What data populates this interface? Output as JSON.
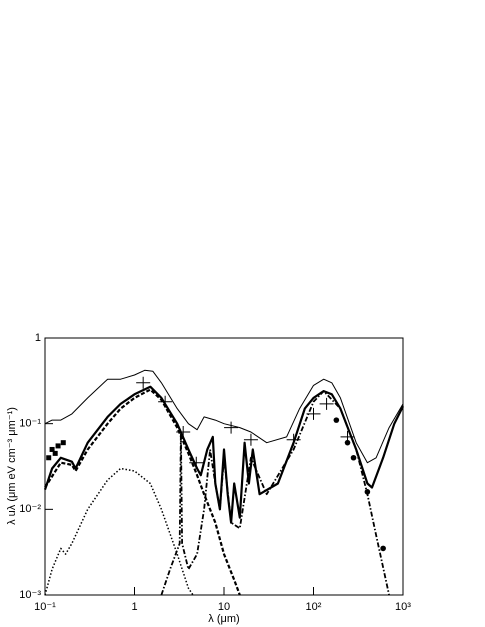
{
  "chart_data": {
    "type": "line",
    "x_label": "λ (μm)",
    "y_label": "λ uλ (μm eV cm⁻³ μm⁻¹)",
    "x_log": true,
    "y_log": true,
    "xlim": [
      0.1,
      1000
    ],
    "ylim": [
      0.001,
      1
    ],
    "xticks": [
      {
        "value": 0.1,
        "label": "10⁻¹"
      },
      1,
      10,
      {
        "value": 100,
        "label": "10²"
      },
      {
        "value": 1000,
        "label": "10³"
      }
    ],
    "yticks": [
      {
        "value": 0.001,
        "label": "10⁻³"
      },
      {
        "value": 0.01,
        "label": "10⁻²"
      },
      {
        "value": 0.1,
        "label": "10⁻¹"
      },
      1
    ],
    "series": [
      {
        "style": "solid",
        "width": 1,
        "color": "#000000",
        "x": [
          0.1,
          0.12,
          0.15,
          0.2,
          0.3,
          0.5,
          0.7,
          1,
          1.3,
          1.6,
          2,
          3,
          4,
          5,
          6,
          8,
          10,
          15,
          20,
          30,
          50,
          70,
          100,
          130,
          160,
          200,
          300,
          400,
          500,
          700,
          1000
        ],
        "values": [
          0.1,
          0.11,
          0.11,
          0.13,
          0.2,
          0.33,
          0.33,
          0.37,
          0.42,
          0.41,
          0.3,
          0.15,
          0.1,
          0.085,
          0.12,
          0.11,
          0.1,
          0.09,
          0.08,
          0.06,
          0.07,
          0.15,
          0.28,
          0.33,
          0.3,
          0.2,
          0.06,
          0.035,
          0.04,
          0.09,
          0.17
        ]
      },
      {
        "style": "solid",
        "width": 2.2,
        "color": "#000000",
        "x": [
          0.1,
          0.12,
          0.15,
          0.2,
          0.22,
          0.3,
          0.5,
          0.7,
          1,
          1.5,
          2,
          3,
          4,
          5,
          5.5,
          6.5,
          7.5,
          8,
          9,
          10,
          11,
          12,
          13,
          15,
          17,
          19,
          21,
          25,
          40,
          60,
          80,
          100,
          130,
          160,
          200,
          300,
          400,
          450,
          600,
          800,
          1000
        ],
        "values": [
          0.017,
          0.03,
          0.04,
          0.036,
          0.03,
          0.06,
          0.12,
          0.17,
          0.22,
          0.27,
          0.2,
          0.1,
          0.05,
          0.03,
          0.025,
          0.05,
          0.07,
          0.02,
          0.01,
          0.05,
          0.015,
          0.007,
          0.02,
          0.008,
          0.06,
          0.02,
          0.05,
          0.015,
          0.02,
          0.06,
          0.15,
          0.2,
          0.24,
          0.22,
          0.15,
          0.05,
          0.02,
          0.018,
          0.04,
          0.1,
          0.16
        ]
      },
      {
        "style": "dashed",
        "width": 2.2,
        "color": "#000000",
        "x": [
          0.1,
          0.15,
          0.2,
          0.22,
          0.3,
          0.5,
          0.7,
          1,
          1.5,
          2,
          3,
          4,
          5,
          6,
          8,
          10,
          13,
          15
        ],
        "values": [
          0.018,
          0.035,
          0.033,
          0.028,
          0.05,
          0.1,
          0.15,
          0.2,
          0.25,
          0.19,
          0.09,
          0.045,
          0.025,
          0.015,
          0.007,
          0.003,
          0.0015,
          0.001
        ]
      },
      {
        "style": "dotted",
        "width": 1.5,
        "color": "#000000",
        "x": [
          0.1,
          0.12,
          0.15,
          0.17,
          0.2,
          0.3,
          0.5,
          0.7,
          1,
          1.5,
          2,
          3,
          4,
          4.5
        ],
        "values": [
          0.001,
          0.002,
          0.0035,
          0.003,
          0.004,
          0.01,
          0.022,
          0.03,
          0.028,
          0.02,
          0.01,
          0.003,
          0.0012,
          0.001
        ]
      },
      {
        "style": "dashdot",
        "width": 1.8,
        "color": "#000000",
        "x": [
          2,
          2.5,
          3.2,
          3.3,
          3.4,
          4,
          5,
          6,
          7,
          8,
          9,
          10,
          12,
          15,
          20,
          30,
          60,
          100,
          130,
          200,
          300,
          400,
          500,
          700
        ],
        "values": [
          0.001,
          0.002,
          0.004,
          0.08,
          0.004,
          0.002,
          0.003,
          0.01,
          0.05,
          0.02,
          0.01,
          0.04,
          0.007,
          0.006,
          0.04,
          0.015,
          0.05,
          0.18,
          0.24,
          0.15,
          0.05,
          0.015,
          0.005,
          0.001
        ]
      }
    ],
    "points": [
      {
        "marker": "square",
        "color": "#000000",
        "x": [
          0.11,
          0.12,
          0.13,
          0.14,
          0.16
        ],
        "values": [
          0.04,
          0.05,
          0.045,
          0.055,
          0.06
        ]
      },
      {
        "marker": "cross",
        "color": "#000000",
        "x": [
          1.25,
          2.2,
          3.5,
          4.9,
          12,
          20,
          60,
          100,
          140,
          240
        ],
        "values": [
          0.3,
          0.18,
          0.08,
          0.035,
          0.09,
          0.065,
          0.065,
          0.13,
          0.17,
          0.07
        ]
      },
      {
        "marker": "circle",
        "color": "#000000",
        "x": [
          180,
          240,
          280,
          400,
          600
        ],
        "values": [
          0.11,
          0.06,
          0.04,
          0.016,
          0.0035
        ]
      }
    ]
  }
}
